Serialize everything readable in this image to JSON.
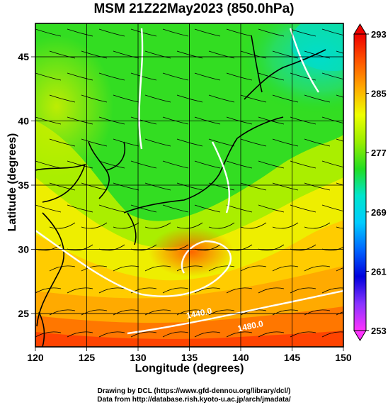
{
  "title": "MSM 21Z22May2023 (850.0hPa)",
  "xlabel": "Longitude (degrees)",
  "ylabel": "Latitude  (degrees)",
  "credits": [
    "Drawing by DCL (https://www.gfd-dennou.org/library/dcl/)",
    "Data from http://database.rish.kyoto-u.ac.jp/arch/jmadata/"
  ],
  "chart_data": {
    "type": "heatmap",
    "xlim": [
      120,
      150
    ],
    "ylim": [
      22.4,
      47.6
    ],
    "x_ticks": [
      120,
      125,
      130,
      135,
      140,
      145,
      150
    ],
    "y_ticks": [
      25,
      30,
      35,
      40,
      45
    ],
    "grid": true,
    "colorbar": {
      "min": 253,
      "max": 293,
      "ticks": [
        253,
        261,
        269,
        277,
        285,
        293
      ],
      "colors": [
        "#ff33ff",
        "#8833ff",
        "#0000dd",
        "#0066ff",
        "#00ccff",
        "#00e5cc",
        "#22dd22",
        "#99ee00",
        "#eeff00",
        "#ffaa00",
        "#ff5500",
        "#ee0000"
      ]
    },
    "contour_labels": [
      {
        "text": "1440.0",
        "lon": 136,
        "lat": 24.8
      },
      {
        "text": "1480.0",
        "lon": 141,
        "lat": 23.8
      }
    ]
  }
}
